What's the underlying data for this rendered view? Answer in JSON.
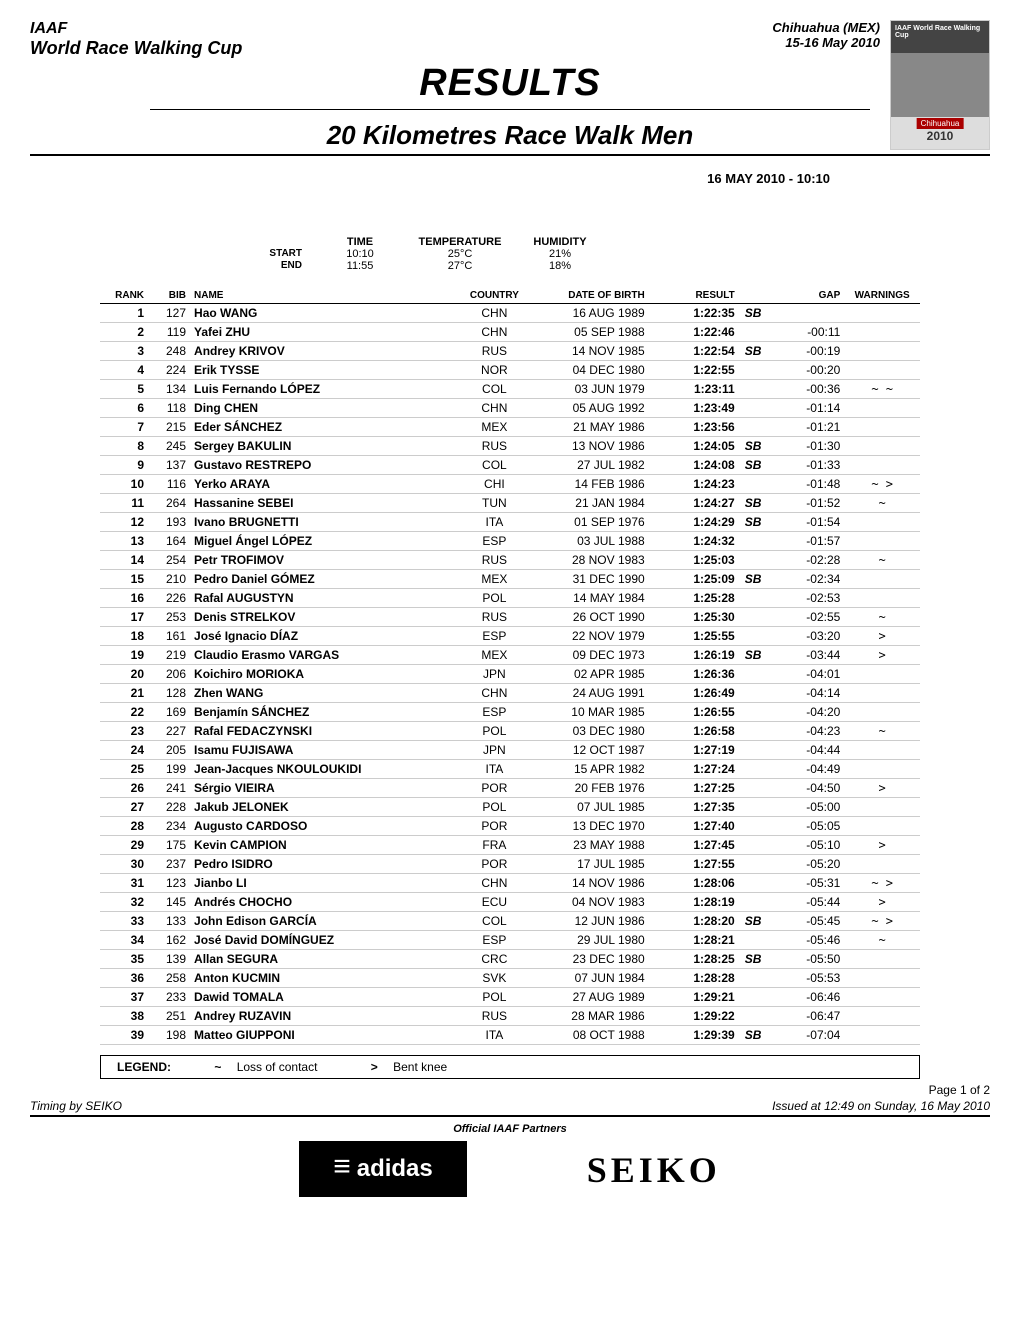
{
  "header": {
    "org": "IAAF",
    "event": "World Race Walking Cup",
    "location": "Chihuahua (MEX)",
    "dates": "15-16 May 2010",
    "logo_top": "IAAF World Race Walking Cup",
    "logo_city": "Chihuahua",
    "logo_year": "2010"
  },
  "title": {
    "main": "RESULTS",
    "sub": "20 Kilometres Race Walk Men",
    "datetime": "16 MAY 2010 - 10:10"
  },
  "conditions": {
    "headers": {
      "time": "TIME",
      "temp": "TEMPERATURE",
      "humidity": "HUMIDITY"
    },
    "start": {
      "label": "START",
      "time": "10:10",
      "temp": "25°C",
      "humidity": "21%"
    },
    "end": {
      "label": "END",
      "time": "11:55",
      "temp": "27°C",
      "humidity": "18%"
    }
  },
  "table": {
    "columns": {
      "rank": "RANK",
      "bib": "BIB",
      "name": "NAME",
      "country": "COUNTRY",
      "dob": "DATE OF BIRTH",
      "result": "RESULT",
      "gap": "GAP",
      "warnings": "WARNINGS"
    },
    "rows": [
      {
        "rank": "1",
        "bib": "127",
        "name": "Hao WANG",
        "country": "CHN",
        "dob": "16 AUG 1989",
        "result": "1:22:35",
        "sb": "SB",
        "gap": "",
        "warn": ""
      },
      {
        "rank": "2",
        "bib": "119",
        "name": "Yafei ZHU",
        "country": "CHN",
        "dob": "05 SEP 1988",
        "result": "1:22:46",
        "sb": "",
        "gap": "-00:11",
        "warn": ""
      },
      {
        "rank": "3",
        "bib": "248",
        "name": "Andrey KRIVOV",
        "country": "RUS",
        "dob": "14 NOV 1985",
        "result": "1:22:54",
        "sb": "SB",
        "gap": "-00:19",
        "warn": ""
      },
      {
        "rank": "4",
        "bib": "224",
        "name": "Erik TYSSE",
        "country": "NOR",
        "dob": "04 DEC 1980",
        "result": "1:22:55",
        "sb": "",
        "gap": "-00:20",
        "warn": ""
      },
      {
        "rank": "5",
        "bib": "134",
        "name": "Luis Fernando LÓPEZ",
        "country": "COL",
        "dob": "03 JUN 1979",
        "result": "1:23:11",
        "sb": "",
        "gap": "-00:36",
        "warn": "~ ~"
      },
      {
        "rank": "6",
        "bib": "118",
        "name": "Ding CHEN",
        "country": "CHN",
        "dob": "05 AUG 1992",
        "result": "1:23:49",
        "sb": "",
        "gap": "-01:14",
        "warn": ""
      },
      {
        "rank": "7",
        "bib": "215",
        "name": "Eder SÁNCHEZ",
        "country": "MEX",
        "dob": "21 MAY 1986",
        "result": "1:23:56",
        "sb": "",
        "gap": "-01:21",
        "warn": ""
      },
      {
        "rank": "8",
        "bib": "245",
        "name": "Sergey BAKULIN",
        "country": "RUS",
        "dob": "13 NOV 1986",
        "result": "1:24:05",
        "sb": "SB",
        "gap": "-01:30",
        "warn": ""
      },
      {
        "rank": "9",
        "bib": "137",
        "name": "Gustavo RESTREPO",
        "country": "COL",
        "dob": "27 JUL 1982",
        "result": "1:24:08",
        "sb": "SB",
        "gap": "-01:33",
        "warn": ""
      },
      {
        "rank": "10",
        "bib": "116",
        "name": "Yerko ARAYA",
        "country": "CHI",
        "dob": "14 FEB 1986",
        "result": "1:24:23",
        "sb": "",
        "gap": "-01:48",
        "warn": "~ >"
      },
      {
        "rank": "11",
        "bib": "264",
        "name": "Hassanine SEBEI",
        "country": "TUN",
        "dob": "21 JAN 1984",
        "result": "1:24:27",
        "sb": "SB",
        "gap": "-01:52",
        "warn": "~"
      },
      {
        "rank": "12",
        "bib": "193",
        "name": "Ivano BRUGNETTI",
        "country": "ITA",
        "dob": "01 SEP 1976",
        "result": "1:24:29",
        "sb": "SB",
        "gap": "-01:54",
        "warn": ""
      },
      {
        "rank": "13",
        "bib": "164",
        "name": "Miguel Ángel LÓPEZ",
        "country": "ESP",
        "dob": "03 JUL 1988",
        "result": "1:24:32",
        "sb": "",
        "gap": "-01:57",
        "warn": ""
      },
      {
        "rank": "14",
        "bib": "254",
        "name": "Petr TROFIMOV",
        "country": "RUS",
        "dob": "28 NOV 1983",
        "result": "1:25:03",
        "sb": "",
        "gap": "-02:28",
        "warn": "~"
      },
      {
        "rank": "15",
        "bib": "210",
        "name": "Pedro Daniel GÓMEZ",
        "country": "MEX",
        "dob": "31 DEC 1990",
        "result": "1:25:09",
        "sb": "SB",
        "gap": "-02:34",
        "warn": ""
      },
      {
        "rank": "16",
        "bib": "226",
        "name": "Rafal AUGUSTYN",
        "country": "POL",
        "dob": "14 MAY 1984",
        "result": "1:25:28",
        "sb": "",
        "gap": "-02:53",
        "warn": ""
      },
      {
        "rank": "17",
        "bib": "253",
        "name": "Denis STRELKOV",
        "country": "RUS",
        "dob": "26 OCT 1990",
        "result": "1:25:30",
        "sb": "",
        "gap": "-02:55",
        "warn": "~"
      },
      {
        "rank": "18",
        "bib": "161",
        "name": "José Ignacio DÍAZ",
        "country": "ESP",
        "dob": "22 NOV 1979",
        "result": "1:25:55",
        "sb": "",
        "gap": "-03:20",
        "warn": ">"
      },
      {
        "rank": "19",
        "bib": "219",
        "name": "Claudio Erasmo VARGAS",
        "country": "MEX",
        "dob": "09 DEC 1973",
        "result": "1:26:19",
        "sb": "SB",
        "gap": "-03:44",
        "warn": ">"
      },
      {
        "rank": "20",
        "bib": "206",
        "name": "Koichiro MORIOKA",
        "country": "JPN",
        "dob": "02 APR 1985",
        "result": "1:26:36",
        "sb": "",
        "gap": "-04:01",
        "warn": ""
      },
      {
        "rank": "21",
        "bib": "128",
        "name": "Zhen WANG",
        "country": "CHN",
        "dob": "24 AUG 1991",
        "result": "1:26:49",
        "sb": "",
        "gap": "-04:14",
        "warn": ""
      },
      {
        "rank": "22",
        "bib": "169",
        "name": "Benjamín SÁNCHEZ",
        "country": "ESP",
        "dob": "10 MAR 1985",
        "result": "1:26:55",
        "sb": "",
        "gap": "-04:20",
        "warn": ""
      },
      {
        "rank": "23",
        "bib": "227",
        "name": "Rafal FEDACZYNSKI",
        "country": "POL",
        "dob": "03 DEC 1980",
        "result": "1:26:58",
        "sb": "",
        "gap": "-04:23",
        "warn": "~"
      },
      {
        "rank": "24",
        "bib": "205",
        "name": "Isamu FUJISAWA",
        "country": "JPN",
        "dob": "12 OCT 1987",
        "result": "1:27:19",
        "sb": "",
        "gap": "-04:44",
        "warn": ""
      },
      {
        "rank": "25",
        "bib": "199",
        "name": "Jean-Jacques NKOULOUKIDI",
        "country": "ITA",
        "dob": "15 APR 1982",
        "result": "1:27:24",
        "sb": "",
        "gap": "-04:49",
        "warn": ""
      },
      {
        "rank": "26",
        "bib": "241",
        "name": "Sérgio VIEIRA",
        "country": "POR",
        "dob": "20 FEB 1976",
        "result": "1:27:25",
        "sb": "",
        "gap": "-04:50",
        "warn": ">"
      },
      {
        "rank": "27",
        "bib": "228",
        "name": "Jakub JELONEK",
        "country": "POL",
        "dob": "07 JUL 1985",
        "result": "1:27:35",
        "sb": "",
        "gap": "-05:00",
        "warn": ""
      },
      {
        "rank": "28",
        "bib": "234",
        "name": "Augusto CARDOSO",
        "country": "POR",
        "dob": "13 DEC 1970",
        "result": "1:27:40",
        "sb": "",
        "gap": "-05:05",
        "warn": ""
      },
      {
        "rank": "29",
        "bib": "175",
        "name": "Kevin CAMPION",
        "country": "FRA",
        "dob": "23 MAY 1988",
        "result": "1:27:45",
        "sb": "",
        "gap": "-05:10",
        "warn": ">"
      },
      {
        "rank": "30",
        "bib": "237",
        "name": "Pedro ISIDRO",
        "country": "POR",
        "dob": "17 JUL 1985",
        "result": "1:27:55",
        "sb": "",
        "gap": "-05:20",
        "warn": ""
      },
      {
        "rank": "31",
        "bib": "123",
        "name": "Jianbo LI",
        "country": "CHN",
        "dob": "14 NOV 1986",
        "result": "1:28:06",
        "sb": "",
        "gap": "-05:31",
        "warn": "~ >"
      },
      {
        "rank": "32",
        "bib": "145",
        "name": "Andrés CHOCHO",
        "country": "ECU",
        "dob": "04 NOV 1983",
        "result": "1:28:19",
        "sb": "",
        "gap": "-05:44",
        "warn": ">"
      },
      {
        "rank": "33",
        "bib": "133",
        "name": "John Edison GARCÍA",
        "country": "COL",
        "dob": "12 JUN 1986",
        "result": "1:28:20",
        "sb": "SB",
        "gap": "-05:45",
        "warn": "~ >"
      },
      {
        "rank": "34",
        "bib": "162",
        "name": "José David DOMÍNGUEZ",
        "country": "ESP",
        "dob": "29 JUL 1980",
        "result": "1:28:21",
        "sb": "",
        "gap": "-05:46",
        "warn": "~"
      },
      {
        "rank": "35",
        "bib": "139",
        "name": "Allan SEGURA",
        "country": "CRC",
        "dob": "23 DEC 1980",
        "result": "1:28:25",
        "sb": "SB",
        "gap": "-05:50",
        "warn": ""
      },
      {
        "rank": "36",
        "bib": "258",
        "name": "Anton KUCMIN",
        "country": "SVK",
        "dob": "07 JUN 1984",
        "result": "1:28:28",
        "sb": "",
        "gap": "-05:53",
        "warn": ""
      },
      {
        "rank": "37",
        "bib": "233",
        "name": "Dawid TOMALA",
        "country": "POL",
        "dob": "27 AUG 1989",
        "result": "1:29:21",
        "sb": "",
        "gap": "-06:46",
        "warn": ""
      },
      {
        "rank": "38",
        "bib": "251",
        "name": "Andrey RUZAVIN",
        "country": "RUS",
        "dob": "28 MAR 1986",
        "result": "1:29:22",
        "sb": "",
        "gap": "-06:47",
        "warn": ""
      },
      {
        "rank": "39",
        "bib": "198",
        "name": "Matteo GIUPPONI",
        "country": "ITA",
        "dob": "08 OCT 1988",
        "result": "1:29:39",
        "sb": "SB",
        "gap": "-07:04",
        "warn": ""
      }
    ]
  },
  "legend": {
    "label": "LEGEND:",
    "items": [
      {
        "sym": "~",
        "text": "Loss of contact"
      },
      {
        "sym": ">",
        "text": "Bent knee"
      }
    ]
  },
  "footer": {
    "page": "Page 1 of 2",
    "timing": "Timing by SEIKO",
    "issued": "Issued at 12:49 on Sunday, 16 May 2010",
    "partners_label": "Official IAAF Partners",
    "partner1": "adidas",
    "partner2": "SEIKO"
  }
}
